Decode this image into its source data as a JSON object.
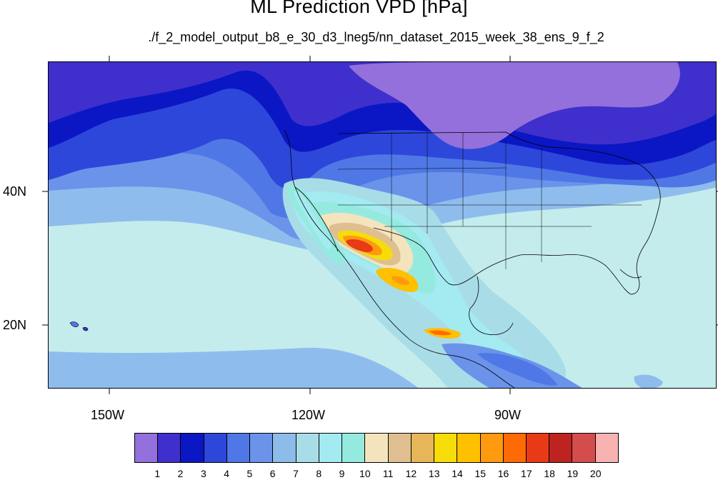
{
  "title": "ML Prediction VPD [hPa]",
  "subtitle": "./f_2_model_output_b8_e_30_d3_lneg5/nn_dataset_2015_week_38_ens_9_f_2",
  "map": {
    "lat_labels": [
      "40N",
      "20N"
    ],
    "lon_labels": [
      "150W",
      "120W",
      "90W"
    ]
  },
  "colorbar": {
    "labels": [
      "1",
      "2",
      "3",
      "4",
      "5",
      "6",
      "7",
      "8",
      "9",
      "10",
      "11",
      "12",
      "13",
      "14",
      "15",
      "16",
      "17",
      "18",
      "19",
      "20"
    ],
    "colors": [
      "#9370db",
      "#3f2fcc",
      "#0b17c4",
      "#2d47db",
      "#4f78e6",
      "#6b93ea",
      "#8cbcea",
      "#a8dde8",
      "#a3ebf1",
      "#95eadf",
      "#f3e4bd",
      "#dfbf90",
      "#e6b659",
      "#f6dd0a",
      "#ffc000",
      "#ff9a10",
      "#ff6a08",
      "#e83a16",
      "#bd2320",
      "#d44d4d",
      "#f9b2b2"
    ]
  }
}
